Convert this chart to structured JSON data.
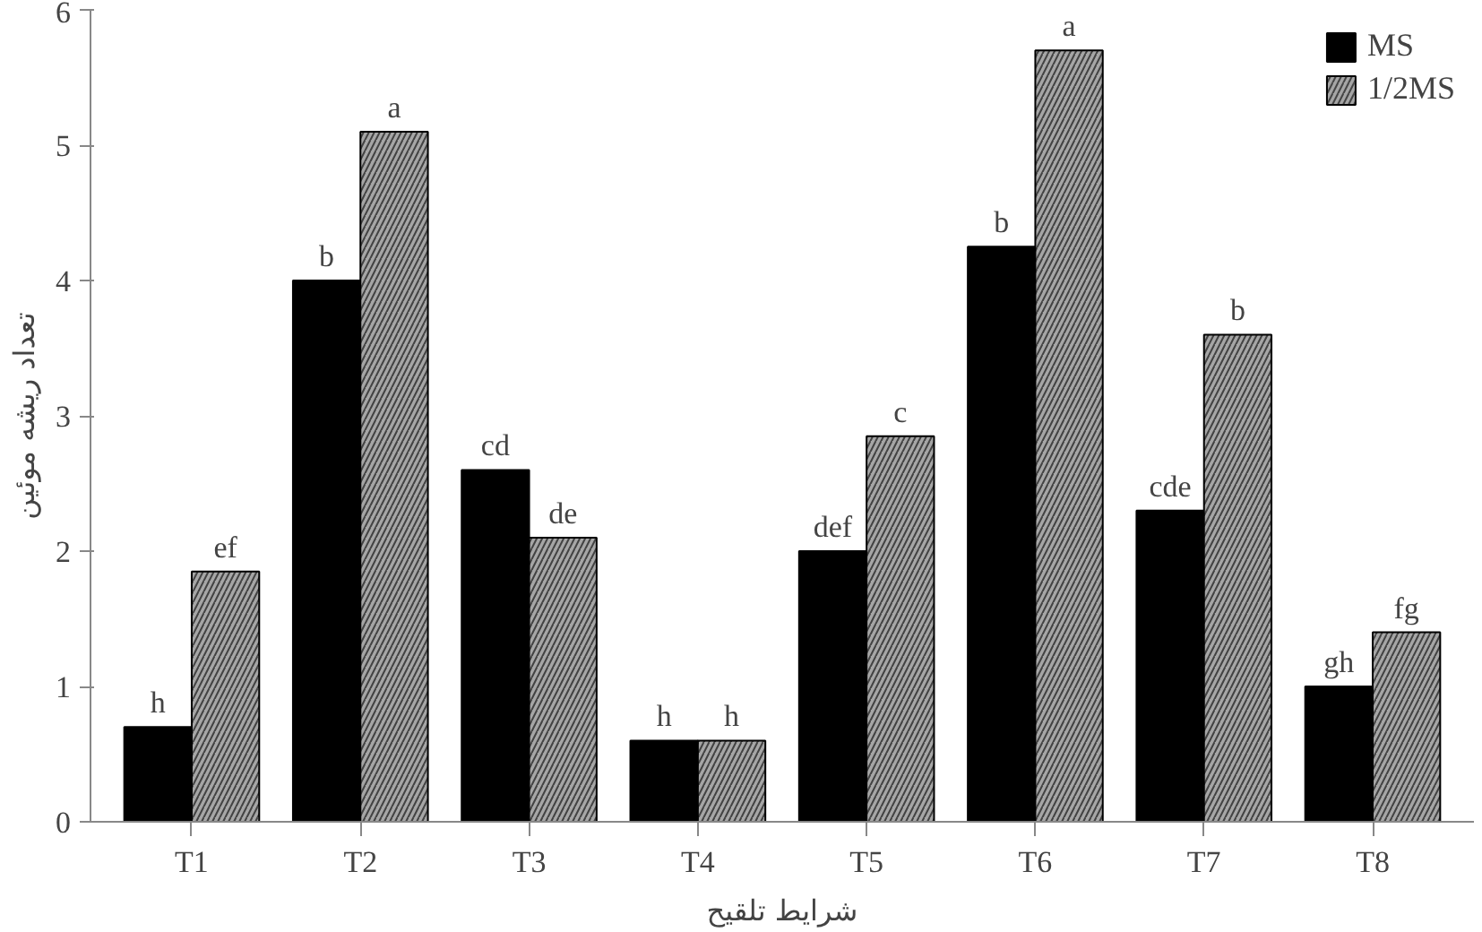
{
  "chart_data": {
    "type": "bar",
    "xlabel": "شرایط تلقیح",
    "ylabel": "تعداد ریشه موئین",
    "categories": [
      "T1",
      "T2",
      "T3",
      "T4",
      "T5",
      "T6",
      "T7",
      "T8"
    ],
    "series": [
      {
        "name": "MS",
        "color": "#000000",
        "values": [
          0.7,
          4.0,
          2.6,
          0.6,
          2.0,
          4.25,
          2.3,
          1.0
        ],
        "value_labels": [
          "h",
          "b",
          "cd",
          "h",
          "def",
          "b",
          "cde",
          "gh"
        ]
      },
      {
        "name": "1/2MS",
        "color": "#a6a6a6",
        "values": [
          1.85,
          5.1,
          2.1,
          0.6,
          2.85,
          5.7,
          3.6,
          1.4
        ],
        "value_labels": [
          "ef",
          "a",
          "de",
          "h",
          "c",
          "a",
          "b",
          "fg"
        ]
      }
    ],
    "ylim": [
      0,
      6
    ],
    "yticks": [
      0,
      1,
      2,
      3,
      4,
      5,
      6
    ],
    "grid": false,
    "legend": "top right"
  }
}
